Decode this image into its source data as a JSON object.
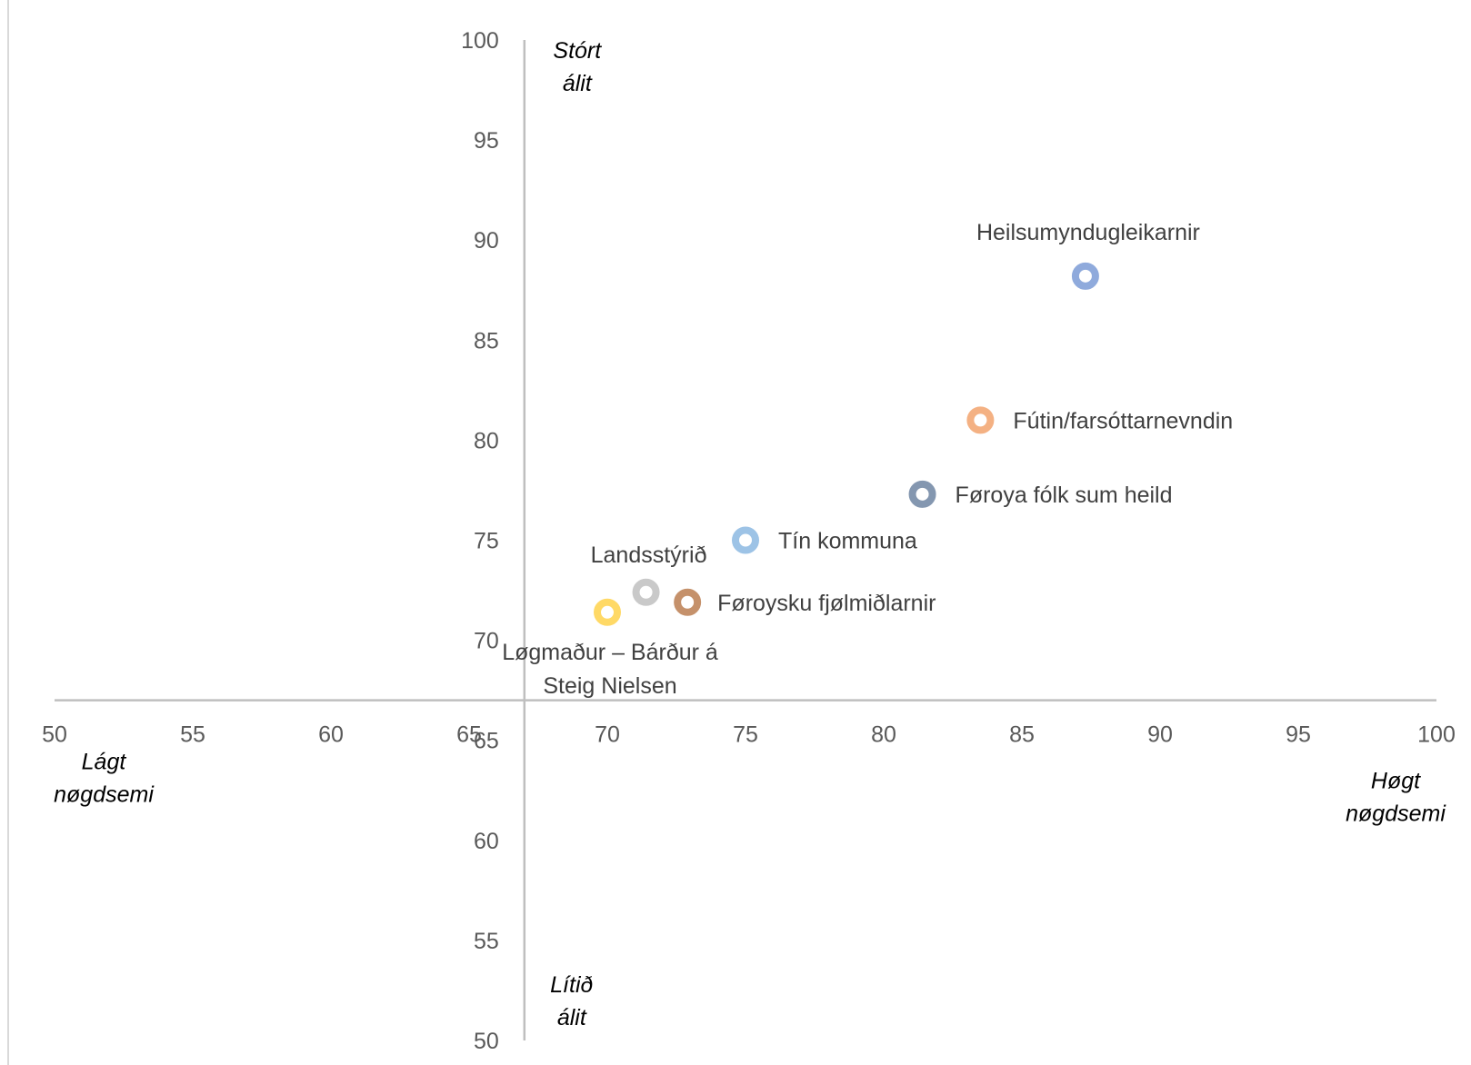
{
  "chart_data": {
    "type": "scatter",
    "xlim": [
      50,
      100
    ],
    "ylim": [
      50,
      100
    ],
    "x_ticks": [
      50,
      55,
      60,
      65,
      70,
      75,
      80,
      85,
      90,
      95,
      100
    ],
    "y_ticks": [
      50,
      55,
      60,
      65,
      70,
      75,
      80,
      85,
      90,
      95,
      100
    ],
    "crossing": {
      "x_axis_at_y": 67,
      "y_axis_at_x": 67
    },
    "grid": false,
    "points": [
      {
        "label": "Heilsumyndugleikarnir",
        "x": 87.3,
        "y": 88.2,
        "color": "#8faadc"
      },
      {
        "label": "Fútin/farsóttarnevndin",
        "x": 83.5,
        "y": 81.0,
        "color": "#f4b183"
      },
      {
        "label": "Føroya fólk sum heild",
        "x": 81.4,
        "y": 77.3,
        "color": "#8497b0"
      },
      {
        "label": "Tín kommuna",
        "x": 75.0,
        "y": 75.0,
        "color": "#9dc3e6"
      },
      {
        "label": "Landsstýrið",
        "x": 71.4,
        "y": 72.4,
        "color": "#c9c9c9"
      },
      {
        "label": "Føroysku fjølmiðlarnir",
        "x": 72.9,
        "y": 71.9,
        "color": "#c5916b"
      },
      {
        "label": [
          "Løgmaður – Bárður á",
          "Steig Nielsen"
        ],
        "x": 70.0,
        "y": 71.4,
        "color": "#ffd966"
      }
    ],
    "quadrant_labels": {
      "top": [
        "Stórt",
        "álit"
      ],
      "bottom": [
        "Lítið",
        "álit"
      ],
      "left": [
        "Lágt",
        "nøgdsemi"
      ],
      "right": [
        "Høgt",
        "nøgdsemi"
      ]
    }
  }
}
